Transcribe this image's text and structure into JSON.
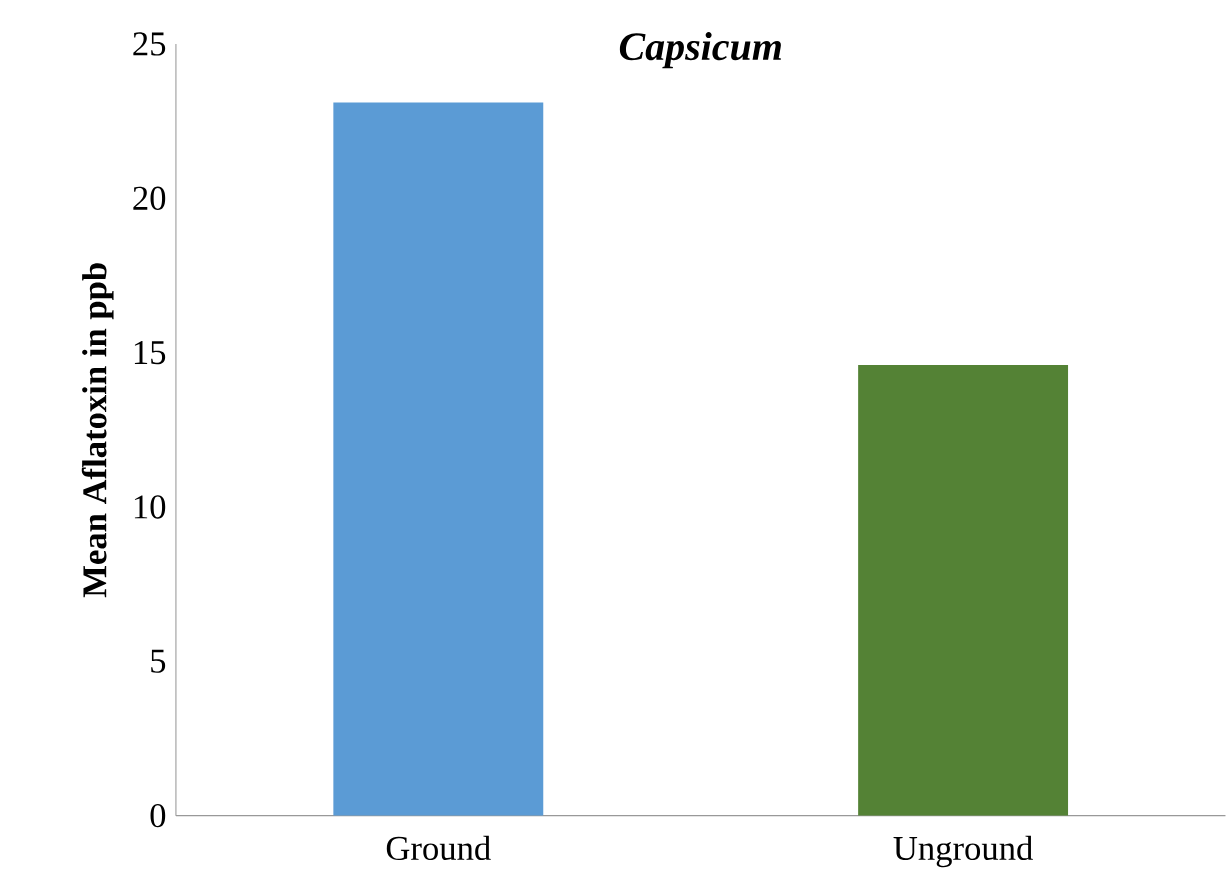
{
  "chart_data": {
    "type": "bar",
    "title": "Capsicum",
    "ylabel": "Mean Aflatoxin in ppb",
    "categories": [
      "Ground",
      "Unground"
    ],
    "values": [
      23.1,
      14.6
    ],
    "colors": [
      "#5b9bd5",
      "#548235"
    ],
    "ylim": [
      0,
      25
    ],
    "yticks": [
      0,
      5,
      10,
      15,
      20,
      25
    ],
    "grid": false
  }
}
